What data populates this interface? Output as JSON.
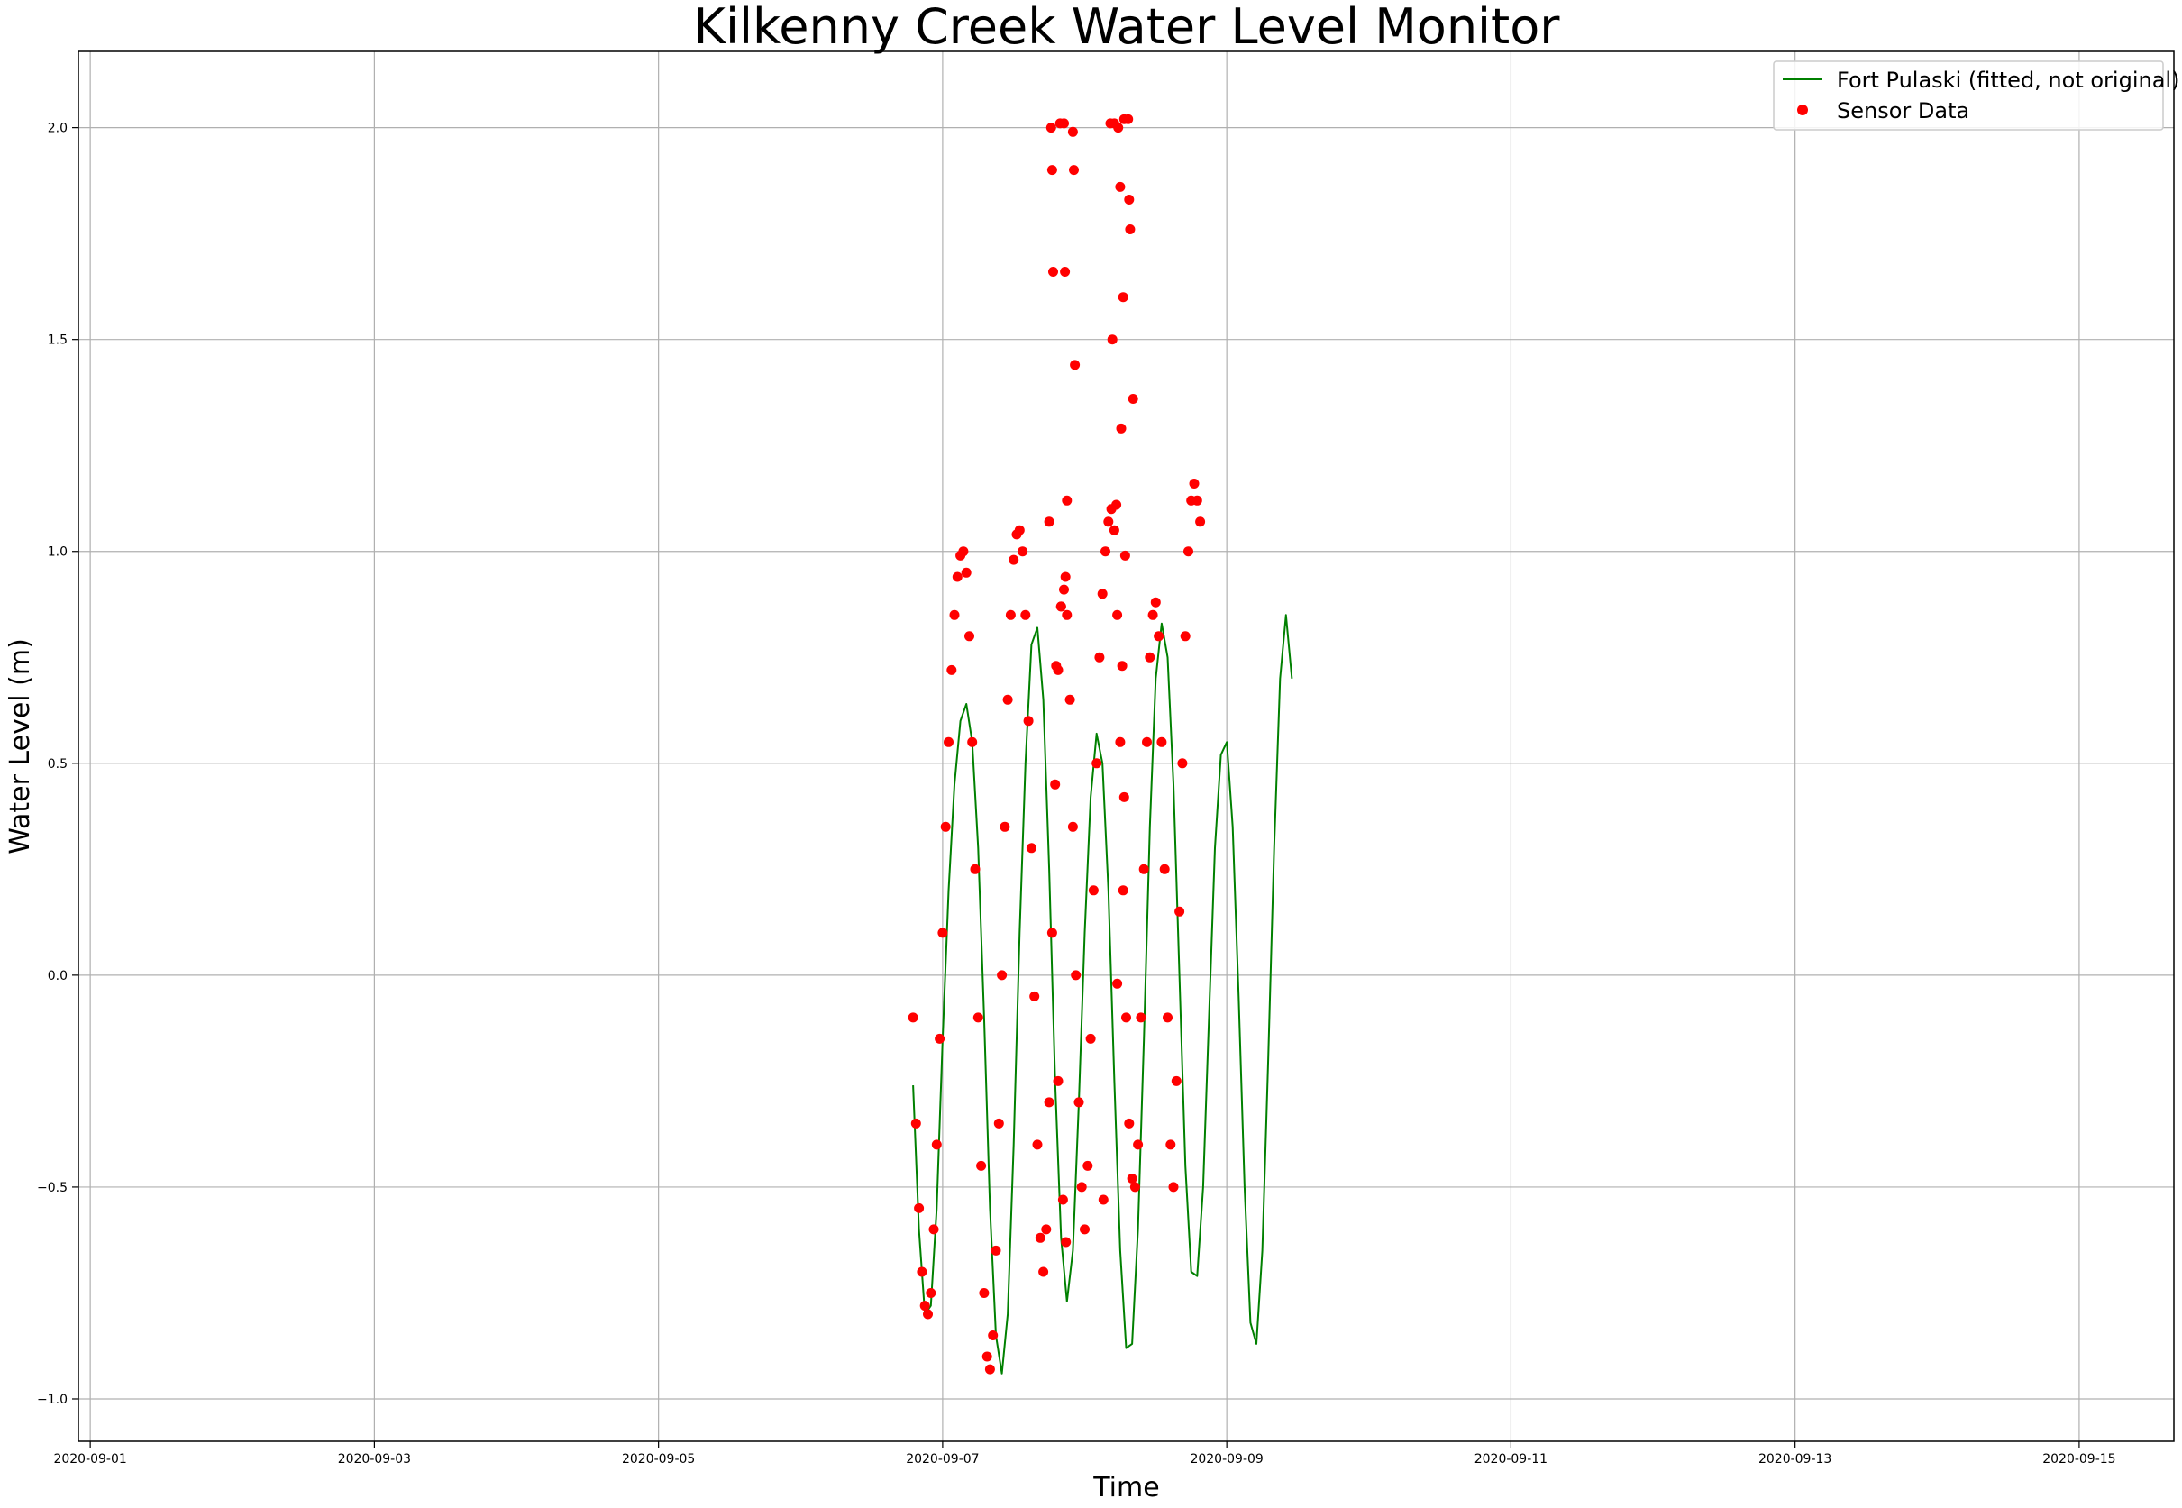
{
  "chart_data": {
    "type": "scatter",
    "title": "Kilkenny Creek Water Level Monitor",
    "xlabel": "Time",
    "ylabel": "Water Level (m)",
    "x_ticks": [
      "2020-09-01",
      "2020-09-03",
      "2020-09-05",
      "2020-09-07",
      "2020-09-09",
      "2020-09-11",
      "2020-09-13",
      "2020-09-15"
    ],
    "y_ticks": [
      "−1.0",
      "−0.5",
      "0.0",
      "0.5",
      "1.0",
      "1.5",
      "2.0"
    ],
    "xlim": [
      "2020-08-31 22:00",
      "2020-09-15 16:00"
    ],
    "ylim": [
      -1.1,
      2.18
    ],
    "grid": true,
    "legend_position": "upper right",
    "series": [
      {
        "name": "Fort Pulaski (fitted, not original)",
        "type": "line",
        "color": "#008000",
        "points": [
          [
            "2020-09-06 19:00",
            -0.26
          ],
          [
            "2020-09-06 20:00",
            -0.6
          ],
          [
            "2020-09-06 21:00",
            -0.8
          ],
          [
            "2020-09-06 22:00",
            -0.78
          ],
          [
            "2020-09-06 23:00",
            -0.55
          ],
          [
            "2020-09-07 00:00",
            -0.15
          ],
          [
            "2020-09-07 01:00",
            0.2
          ],
          [
            "2020-09-07 02:00",
            0.45
          ],
          [
            "2020-09-07 03:00",
            0.6
          ],
          [
            "2020-09-07 04:00",
            0.64
          ],
          [
            "2020-09-07 05:00",
            0.55
          ],
          [
            "2020-09-07 06:00",
            0.3
          ],
          [
            "2020-09-07 07:00",
            -0.1
          ],
          [
            "2020-09-07 08:00",
            -0.55
          ],
          [
            "2020-09-07 09:00",
            -0.85
          ],
          [
            "2020-09-07 10:00",
            -0.94
          ],
          [
            "2020-09-07 11:00",
            -0.8
          ],
          [
            "2020-09-07 12:00",
            -0.4
          ],
          [
            "2020-09-07 13:00",
            0.1
          ],
          [
            "2020-09-07 14:00",
            0.5
          ],
          [
            "2020-09-07 15:00",
            0.78
          ],
          [
            "2020-09-07 16:00",
            0.82
          ],
          [
            "2020-09-07 17:00",
            0.65
          ],
          [
            "2020-09-07 18:00",
            0.25
          ],
          [
            "2020-09-07 19:00",
            -0.25
          ],
          [
            "2020-09-07 20:00",
            -0.62
          ],
          [
            "2020-09-07 21:00",
            -0.77
          ],
          [
            "2020-09-07 22:00",
            -0.65
          ],
          [
            "2020-09-07 23:00",
            -0.3
          ],
          [
            "2020-09-08 00:00",
            0.1
          ],
          [
            "2020-09-08 01:00",
            0.42
          ],
          [
            "2020-09-08 02:00",
            0.57
          ],
          [
            "2020-09-08 03:00",
            0.5
          ],
          [
            "2020-09-08 04:00",
            0.2
          ],
          [
            "2020-09-08 05:00",
            -0.25
          ],
          [
            "2020-09-08 06:00",
            -0.65
          ],
          [
            "2020-09-08 07:00",
            -0.88
          ],
          [
            "2020-09-08 08:00",
            -0.87
          ],
          [
            "2020-09-08 09:00",
            -0.6
          ],
          [
            "2020-09-08 10:00",
            -0.15
          ],
          [
            "2020-09-08 11:00",
            0.35
          ],
          [
            "2020-09-08 12:00",
            0.7
          ],
          [
            "2020-09-08 13:00",
            0.83
          ],
          [
            "2020-09-08 14:00",
            0.75
          ],
          [
            "2020-09-08 15:00",
            0.45
          ],
          [
            "2020-09-08 16:00",
            0.0
          ],
          [
            "2020-09-08 17:00",
            -0.45
          ],
          [
            "2020-09-08 18:00",
            -0.7
          ],
          [
            "2020-09-08 19:00",
            -0.71
          ],
          [
            "2020-09-08 20:00",
            -0.5
          ],
          [
            "2020-09-08 21:00",
            -0.1
          ],
          [
            "2020-09-08 22:00",
            0.3
          ],
          [
            "2020-09-08 23:00",
            0.52
          ],
          [
            "2020-09-09 00:00",
            0.55
          ],
          [
            "2020-09-09 01:00",
            0.35
          ],
          [
            "2020-09-09 02:00",
            -0.05
          ],
          [
            "2020-09-09 03:00",
            -0.5
          ],
          [
            "2020-09-09 04:00",
            -0.82
          ],
          [
            "2020-09-09 05:00",
            -0.87
          ],
          [
            "2020-09-09 06:00",
            -0.65
          ],
          [
            "2020-09-09 07:00",
            -0.2
          ],
          [
            "2020-09-09 08:00",
            0.3
          ],
          [
            "2020-09-09 09:00",
            0.7
          ],
          [
            "2020-09-09 10:00",
            0.85
          ],
          [
            "2020-09-09 11:00",
            0.7
          ]
        ]
      },
      {
        "name": "Sensor Data",
        "type": "scatter",
        "color": "#ff0000",
        "points": [
          [
            "2020-09-06 19:00",
            -0.1
          ],
          [
            "2020-09-06 19:30",
            -0.35
          ],
          [
            "2020-09-06 20:00",
            -0.55
          ],
          [
            "2020-09-06 20:30",
            -0.7
          ],
          [
            "2020-09-06 21:00",
            -0.78
          ],
          [
            "2020-09-06 21:30",
            -0.8
          ],
          [
            "2020-09-06 22:00",
            -0.75
          ],
          [
            "2020-09-06 22:30",
            -0.6
          ],
          [
            "2020-09-06 23:00",
            -0.4
          ],
          [
            "2020-09-06 23:30",
            -0.15
          ],
          [
            "2020-09-07 00:00",
            0.1
          ],
          [
            "2020-09-07 00:30",
            0.35
          ],
          [
            "2020-09-07 01:00",
            0.55
          ],
          [
            "2020-09-07 01:30",
            0.72
          ],
          [
            "2020-09-07 02:00",
            0.85
          ],
          [
            "2020-09-07 02:30",
            0.94
          ],
          [
            "2020-09-07 03:00",
            0.99
          ],
          [
            "2020-09-07 03:30",
            1.0
          ],
          [
            "2020-09-07 04:00",
            0.95
          ],
          [
            "2020-09-07 04:30",
            0.8
          ],
          [
            "2020-09-07 05:00",
            0.55
          ],
          [
            "2020-09-07 05:30",
            0.25
          ],
          [
            "2020-09-07 06:00",
            -0.1
          ],
          [
            "2020-09-07 06:30",
            -0.45
          ],
          [
            "2020-09-07 07:00",
            -0.75
          ],
          [
            "2020-09-07 07:30",
            -0.9
          ],
          [
            "2020-09-07 08:00",
            -0.93
          ],
          [
            "2020-09-07 08:30",
            -0.85
          ],
          [
            "2020-09-07 09:00",
            -0.65
          ],
          [
            "2020-09-07 09:30",
            -0.35
          ],
          [
            "2020-09-07 10:00",
            0.0
          ],
          [
            "2020-09-07 10:30",
            0.35
          ],
          [
            "2020-09-07 11:00",
            0.65
          ],
          [
            "2020-09-07 11:30",
            0.85
          ],
          [
            "2020-09-07 12:00",
            0.98
          ],
          [
            "2020-09-07 12:30",
            1.04
          ],
          [
            "2020-09-07 13:00",
            1.05
          ],
          [
            "2020-09-07 13:30",
            1.0
          ],
          [
            "2020-09-07 14:00",
            0.85
          ],
          [
            "2020-09-07 14:30",
            0.6
          ],
          [
            "2020-09-07 15:00",
            0.3
          ],
          [
            "2020-09-07 15:30",
            -0.05
          ],
          [
            "2020-09-07 16:00",
            -0.4
          ],
          [
            "2020-09-07 16:30",
            -0.62
          ],
          [
            "2020-09-07 17:00",
            -0.7
          ],
          [
            "2020-09-07 17:30",
            -0.6
          ],
          [
            "2020-09-07 18:00",
            -0.3
          ],
          [
            "2020-09-07 18:30",
            0.1
          ],
          [
            "2020-09-07 19:00",
            0.45
          ],
          [
            "2020-09-07 19:30",
            0.72
          ],
          [
            "2020-09-07 20:00",
            0.87
          ],
          [
            "2020-09-07 20:30",
            0.91
          ],
          [
            "2020-09-07 21:00",
            0.85
          ],
          [
            "2020-09-07 21:30",
            0.65
          ],
          [
            "2020-09-07 22:00",
            0.35
          ],
          [
            "2020-09-07 22:30",
            0.0
          ],
          [
            "2020-09-07 23:00",
            -0.3
          ],
          [
            "2020-09-07 23:30",
            -0.5
          ],
          [
            "2020-09-08 00:00",
            -0.6
          ],
          [
            "2020-09-08 00:30",
            -0.45
          ],
          [
            "2020-09-08 01:00",
            -0.15
          ],
          [
            "2020-09-08 01:30",
            0.2
          ],
          [
            "2020-09-08 02:00",
            0.5
          ],
          [
            "2020-09-08 02:30",
            0.75
          ],
          [
            "2020-09-08 03:00",
            0.9
          ],
          [
            "2020-09-08 03:30",
            1.0
          ],
          [
            "2020-09-08 04:00",
            1.07
          ],
          [
            "2020-09-08 04:30",
            1.1
          ],
          [
            "2020-09-08 05:00",
            1.05
          ],
          [
            "2020-09-08 05:30",
            0.85
          ],
          [
            "2020-09-08 06:00",
            0.55
          ],
          [
            "2020-09-08 06:30",
            0.2
          ],
          [
            "2020-09-08 07:00",
            -0.1
          ],
          [
            "2020-09-08 07:30",
            -0.35
          ],
          [
            "2020-09-08 08:00",
            -0.48
          ],
          [
            "2020-09-08 08:30",
            -0.5
          ],
          [
            "2020-09-08 09:00",
            -0.4
          ],
          [
            "2020-09-08 09:30",
            -0.1
          ],
          [
            "2020-09-08 10:00",
            0.25
          ],
          [
            "2020-09-08 10:30",
            0.55
          ],
          [
            "2020-09-08 11:00",
            0.75
          ],
          [
            "2020-09-08 11:30",
            0.85
          ],
          [
            "2020-09-08 12:00",
            0.88
          ],
          [
            "2020-09-08 12:30",
            0.8
          ],
          [
            "2020-09-08 13:00",
            0.55
          ],
          [
            "2020-09-08 13:30",
            0.25
          ],
          [
            "2020-09-08 14:00",
            -0.1
          ],
          [
            "2020-09-08 14:30",
            -0.4
          ],
          [
            "2020-09-08 15:00",
            -0.5
          ],
          [
            "2020-09-08 15:30",
            -0.25
          ],
          [
            "2020-09-08 16:00",
            0.15
          ],
          [
            "2020-09-08 16:30",
            0.5
          ],
          [
            "2020-09-08 17:00",
            0.8
          ],
          [
            "2020-09-08 17:30",
            1.0
          ],
          [
            "2020-09-08 18:00",
            1.12
          ],
          [
            "2020-09-08 18:30",
            1.16
          ],
          [
            "2020-09-08 19:00",
            1.12
          ],
          [
            "2020-09-08 19:30",
            1.07
          ],
          [
            "2020-09-07 18:20",
            2.0
          ],
          [
            "2020-09-07 18:30",
            1.9
          ],
          [
            "2020-09-07 18:40",
            1.66
          ],
          [
            "2020-09-07 19:50",
            2.01
          ],
          [
            "2020-09-07 20:30",
            2.01
          ],
          [
            "2020-09-07 20:40",
            1.66
          ],
          [
            "2020-09-07 22:00",
            1.99
          ],
          [
            "2020-09-07 22:10",
            1.9
          ],
          [
            "2020-09-07 22:20",
            1.44
          ],
          [
            "2020-09-07 21:00",
            1.12
          ],
          [
            "2020-09-07 18:00",
            1.07
          ],
          [
            "2020-09-07 20:00",
            0.87
          ],
          [
            "2020-09-07 20:45",
            0.94
          ],
          [
            "2020-09-07 19:10",
            0.73
          ],
          [
            "2020-09-08 04:20",
            2.01
          ],
          [
            "2020-09-08 05:00",
            2.01
          ],
          [
            "2020-09-08 05:40",
            2.0
          ],
          [
            "2020-09-08 06:40",
            2.02
          ],
          [
            "2020-09-08 07:20",
            2.02
          ],
          [
            "2020-09-08 06:00",
            1.86
          ],
          [
            "2020-09-08 07:30",
            1.83
          ],
          [
            "2020-09-08 07:40",
            1.76
          ],
          [
            "2020-09-08 06:30",
            1.6
          ],
          [
            "2020-09-08 04:40",
            1.5
          ],
          [
            "2020-09-08 08:10",
            1.36
          ],
          [
            "2020-09-08 06:10",
            1.29
          ],
          [
            "2020-09-08 05:20",
            1.11
          ],
          [
            "2020-09-08 06:50",
            0.99
          ],
          [
            "2020-09-08 06:20",
            0.73
          ],
          [
            "2020-09-07 19:30",
            -0.25
          ],
          [
            "2020-09-07 20:20",
            -0.53
          ],
          [
            "2020-09-07 20:50",
            -0.63
          ],
          [
            "2020-09-08 03:10",
            -0.53
          ],
          [
            "2020-09-08 05:30",
            -0.02
          ],
          [
            "2020-09-08 06:40",
            0.42
          ]
        ]
      }
    ]
  }
}
